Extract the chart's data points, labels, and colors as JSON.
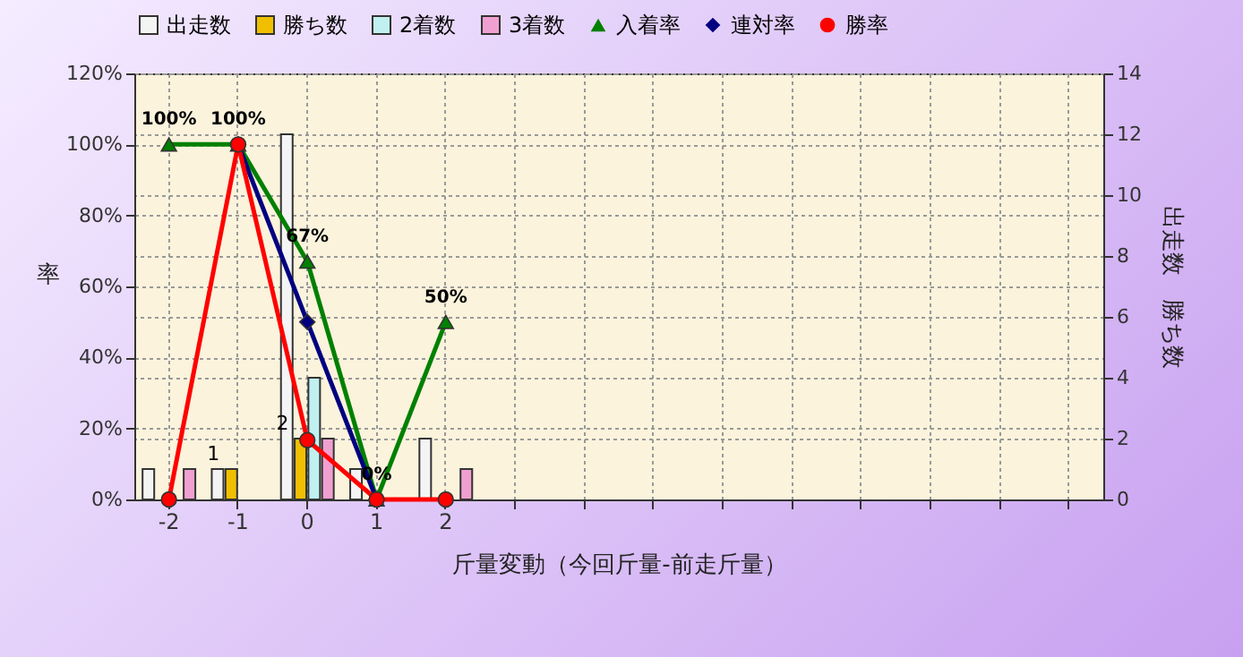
{
  "chart_data": {
    "type": "bar",
    "categories": [
      "-2",
      "-1",
      "0",
      "1",
      "2",
      null,
      null,
      null,
      null,
      null,
      null,
      null,
      null,
      null
    ],
    "xlabel": "斤量変動（今回斤量-前走斤量）",
    "ylabel": "率",
    "y2label": "出走数　勝ち数",
    "ylim": [
      0,
      120
    ],
    "yticks": [
      {
        "value": 0,
        "label": "0%"
      },
      {
        "value": 20,
        "label": "20%"
      },
      {
        "value": 40,
        "label": "40%"
      },
      {
        "value": 60,
        "label": "60%"
      },
      {
        "value": 80,
        "label": "80%"
      },
      {
        "value": 100,
        "label": "100%"
      },
      {
        "value": 120,
        "label": "120%"
      }
    ],
    "y2lim": [
      0,
      14
    ],
    "y2ticks": [
      0,
      2,
      4,
      6,
      8,
      10,
      12,
      14
    ],
    "grid": true,
    "legend": "top",
    "series": [
      {
        "name": "出走数",
        "axis": "y2",
        "color": "#f4f4f4",
        "values": [
          1,
          1,
          12,
          1,
          2,
          null,
          null,
          null,
          null,
          null,
          null,
          null,
          null,
          null
        ]
      },
      {
        "name": "勝ち数",
        "axis": "y2",
        "color": "#f0c000",
        "values": [
          0,
          1,
          2,
          0,
          0,
          null,
          null,
          null,
          null,
          null,
          null,
          null,
          null,
          null
        ],
        "value_labels": [
          null,
          "1",
          "2",
          null,
          null,
          null,
          null,
          null,
          null,
          null,
          null,
          null,
          null,
          null
        ]
      },
      {
        "name": "2着数",
        "axis": "y2",
        "color": "#c0f0f0",
        "values": [
          0,
          0,
          4,
          0,
          0,
          null,
          null,
          null,
          null,
          null,
          null,
          null,
          null,
          null
        ]
      },
      {
        "name": "3着数",
        "axis": "y2",
        "color": "#f0a0d0",
        "values": [
          1,
          0,
          2,
          0,
          1,
          null,
          null,
          null,
          null,
          null,
          null,
          null,
          null,
          null
        ]
      },
      {
        "name": "入着率",
        "type": "line",
        "color": "#008000",
        "marker": "triangle",
        "values": [
          100,
          100,
          67,
          0,
          50,
          null,
          null,
          null,
          null,
          null,
          null,
          null,
          null,
          null
        ],
        "value_labels": [
          "100%",
          "100%",
          "67%",
          "0%",
          "50%",
          null,
          null,
          null,
          null,
          null,
          null,
          null,
          null,
          null
        ]
      },
      {
        "name": "連対率",
        "type": "line",
        "color": "#000080",
        "marker": "diamond",
        "values": [
          null,
          100,
          50,
          0,
          null,
          null,
          null,
          null,
          null,
          null,
          null,
          null,
          null,
          null
        ]
      },
      {
        "name": "勝率",
        "type": "line",
        "color": "#ff0000",
        "marker": "circle",
        "values": [
          0,
          100,
          16.7,
          0,
          0,
          null,
          null,
          null,
          null,
          null,
          null,
          null,
          null,
          null
        ]
      }
    ]
  }
}
